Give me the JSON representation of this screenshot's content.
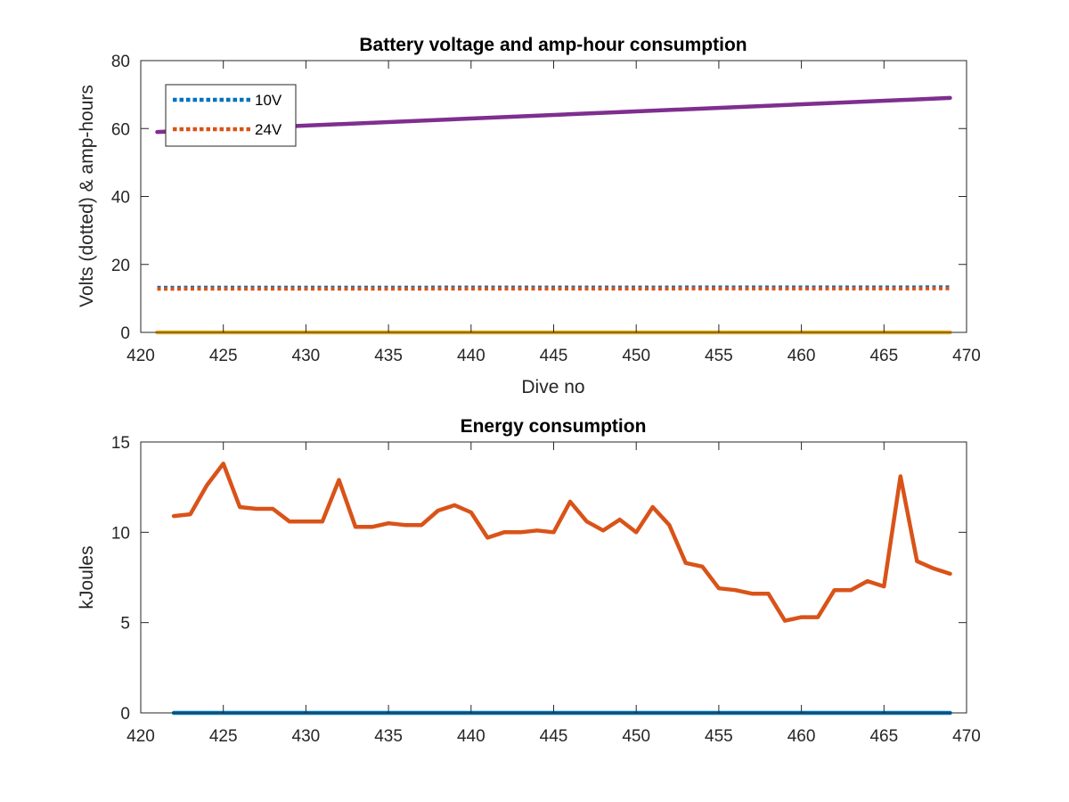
{
  "chart_data": [
    {
      "type": "line",
      "title": "Battery voltage and amp-hour consumption",
      "xlabel": "Dive no",
      "ylabel": "Volts (dotted) & amp-hours",
      "xlim": [
        420,
        470
      ],
      "ylim": [
        0,
        80
      ],
      "xticks": [
        420,
        425,
        430,
        435,
        440,
        445,
        450,
        455,
        460,
        465,
        470
      ],
      "yticks": [
        0,
        20,
        40,
        60,
        80
      ],
      "grid": false,
      "legend": {
        "position": "top-left"
      },
      "series": [
        {
          "name": "10V",
          "style": "dotted",
          "color": "#0072BD",
          "x": [
            421,
            469
          ],
          "y": [
            13.2,
            13.3
          ]
        },
        {
          "name": "24V",
          "style": "dotted",
          "color": "#D95319",
          "x": [
            421,
            469
          ],
          "y": [
            12.8,
            12.9
          ]
        },
        {
          "style": "solid",
          "color": "#EDB120",
          "x": [
            421,
            469
          ],
          "y": [
            0,
            0
          ]
        },
        {
          "style": "solid",
          "color": "#7E2F8E",
          "x": [
            421,
            469
          ],
          "y": [
            59,
            69
          ]
        }
      ]
    },
    {
      "type": "line",
      "title": "Energy consumption",
      "xlabel": "",
      "ylabel": "kJoules",
      "xlim": [
        420,
        470
      ],
      "ylim": [
        0,
        15
      ],
      "xticks": [
        420,
        425,
        430,
        435,
        440,
        445,
        450,
        455,
        460,
        465,
        470
      ],
      "yticks": [
        0,
        5,
        10,
        15
      ],
      "grid": false,
      "series": [
        {
          "style": "solid",
          "color": "#0072BD",
          "x": [
            422,
            469
          ],
          "y": [
            0,
            0
          ]
        },
        {
          "style": "solid",
          "color": "#D95319",
          "x": [
            422,
            423,
            424,
            425,
            426,
            427,
            428,
            429,
            430,
            431,
            432,
            433,
            434,
            435,
            436,
            437,
            438,
            439,
            440,
            441,
            442,
            443,
            444,
            445,
            446,
            447,
            448,
            449,
            450,
            451,
            452,
            453,
            454,
            455,
            456,
            457,
            458,
            459,
            460,
            461,
            462,
            463,
            464,
            465,
            466,
            467,
            468,
            469
          ],
          "y": [
            10.9,
            11.0,
            12.6,
            13.8,
            11.4,
            11.3,
            11.3,
            10.6,
            10.6,
            10.6,
            12.9,
            10.3,
            10.3,
            10.5,
            10.4,
            10.4,
            11.2,
            11.5,
            11.1,
            9.7,
            10.0,
            10.0,
            10.1,
            10.0,
            11.7,
            10.6,
            10.1,
            10.7,
            10.0,
            11.4,
            10.4,
            8.3,
            8.1,
            6.9,
            6.8,
            6.6,
            6.6,
            5.1,
            5.3,
            5.3,
            6.8,
            6.8,
            7.3,
            7.0,
            13.1,
            8.4,
            8.0,
            7.7
          ]
        }
      ]
    }
  ]
}
